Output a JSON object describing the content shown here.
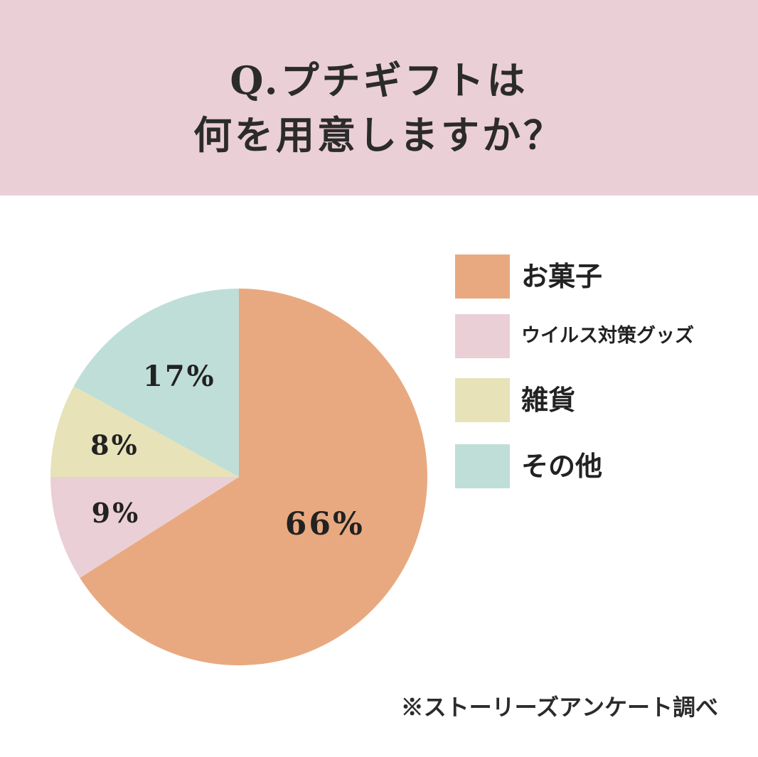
{
  "header": {
    "title_line1": "Q.プチギフトは",
    "title_line2": "何を用意しますか？"
  },
  "chart_data": {
    "type": "pie",
    "slices": [
      {
        "name": "お菓子",
        "value": 66,
        "label": "66%",
        "color": "#e9a980"
      },
      {
        "name": "ウイルス対策グッズ",
        "value": 9,
        "label": "9%",
        "color": "#ebcfd6"
      },
      {
        "name": "雑貨",
        "value": 8,
        "label": "8%",
        "color": "#e7e2b8"
      },
      {
        "name": "その他",
        "value": 17,
        "label": "17%",
        "color": "#bfded7"
      }
    ],
    "legend_position": "right"
  },
  "footnote": "※ストーリーズアンケート調べ"
}
